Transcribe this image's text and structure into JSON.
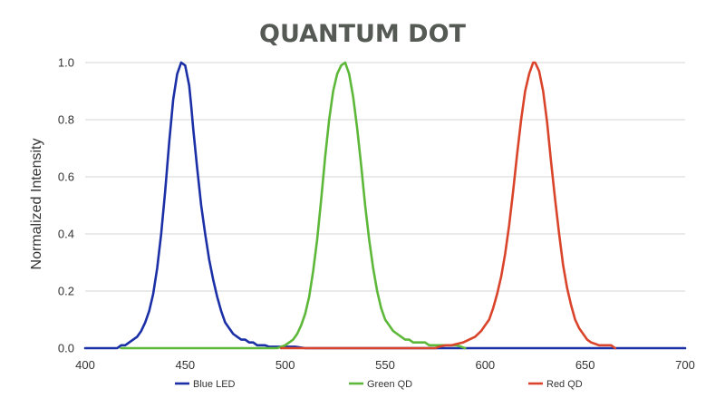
{
  "chart_data": {
    "type": "line",
    "title": "QUANTUM DOT",
    "xlabel": "",
    "ylabel": "Normalized Intensity",
    "xlim": [
      400,
      700
    ],
    "ylim": [
      0,
      1.0
    ],
    "x_ticks": [
      "400",
      "450",
      "500",
      "550",
      "600",
      "650",
      "700"
    ],
    "y_ticks": [
      "0.0",
      "0.2",
      "0.4",
      "0.6",
      "0.8",
      "1.0"
    ],
    "grid": true,
    "legend_position": "bottom",
    "series": [
      {
        "name": "Blue LED",
        "color": "#1b2fa6",
        "x": [
          400,
          416,
          418,
          420,
          422,
          424,
          426,
          428,
          430,
          432,
          434,
          436,
          438,
          440,
          442,
          444,
          446,
          448,
          450,
          452,
          453,
          454,
          456,
          458,
          460,
          462,
          464,
          466,
          468,
          470,
          472,
          474,
          476,
          478,
          480,
          482,
          484,
          486,
          488,
          490,
          492,
          494,
          496,
          498,
          500,
          505,
          508,
          510,
          515,
          520,
          560,
          600,
          650,
          700
        ],
        "y": [
          0.0,
          0.0,
          0.01,
          0.01,
          0.02,
          0.03,
          0.04,
          0.06,
          0.09,
          0.13,
          0.19,
          0.28,
          0.4,
          0.55,
          0.72,
          0.87,
          0.96,
          1.0,
          0.99,
          0.92,
          0.85,
          0.77,
          0.63,
          0.5,
          0.4,
          0.31,
          0.24,
          0.18,
          0.13,
          0.09,
          0.07,
          0.05,
          0.04,
          0.03,
          0.03,
          0.02,
          0.02,
          0.01,
          0.01,
          0.01,
          0.005,
          0.005,
          0.005,
          0.005,
          0.005,
          0.005,
          0.002,
          0.0,
          0.0,
          0.0,
          0.0,
          0.0,
          0.0,
          0.0
        ]
      },
      {
        "name": "Green QD",
        "color": "#5db83a",
        "x": [
          418,
          496,
          498,
          500,
          502,
          504,
          506,
          508,
          510,
          512,
          514,
          516,
          518,
          520,
          522,
          524,
          526,
          528,
          530,
          532,
          534,
          536,
          538,
          540,
          542,
          544,
          546,
          548,
          550,
          552,
          554,
          556,
          558,
          560,
          562,
          564,
          566,
          568,
          570,
          572,
          574,
          576,
          578,
          580,
          582,
          584,
          586,
          588,
          590
        ],
        "y": [
          0.0,
          0.0,
          0.005,
          0.01,
          0.02,
          0.03,
          0.05,
          0.08,
          0.12,
          0.18,
          0.27,
          0.38,
          0.52,
          0.67,
          0.8,
          0.9,
          0.96,
          0.99,
          1.0,
          0.96,
          0.88,
          0.77,
          0.64,
          0.5,
          0.38,
          0.28,
          0.2,
          0.14,
          0.1,
          0.08,
          0.06,
          0.05,
          0.04,
          0.03,
          0.03,
          0.02,
          0.02,
          0.02,
          0.02,
          0.01,
          0.01,
          0.01,
          0.01,
          0.01,
          0.01,
          0.01,
          0.01,
          0.005,
          0.0
        ]
      },
      {
        "name": "Red QD",
        "color": "#d9442b",
        "x": [
          498,
          575,
          577,
          580,
          583,
          586,
          589,
          592,
          595,
          598,
          600,
          602,
          604,
          606,
          608,
          610,
          612,
          614,
          616,
          618,
          620,
          622,
          624,
          625,
          627,
          629,
          631,
          633,
          635,
          637,
          639,
          641,
          643,
          645,
          647,
          649,
          651,
          653,
          655,
          657,
          659,
          661,
          663,
          665
        ],
        "y": [
          0.0,
          0.0,
          0.005,
          0.01,
          0.01,
          0.015,
          0.02,
          0.03,
          0.04,
          0.06,
          0.08,
          0.1,
          0.14,
          0.19,
          0.25,
          0.33,
          0.43,
          0.55,
          0.68,
          0.8,
          0.9,
          0.96,
          1.0,
          1.0,
          0.97,
          0.9,
          0.79,
          0.65,
          0.52,
          0.4,
          0.29,
          0.21,
          0.15,
          0.1,
          0.07,
          0.05,
          0.03,
          0.02,
          0.015,
          0.01,
          0.01,
          0.01,
          0.01,
          0.0
        ]
      }
    ]
  }
}
